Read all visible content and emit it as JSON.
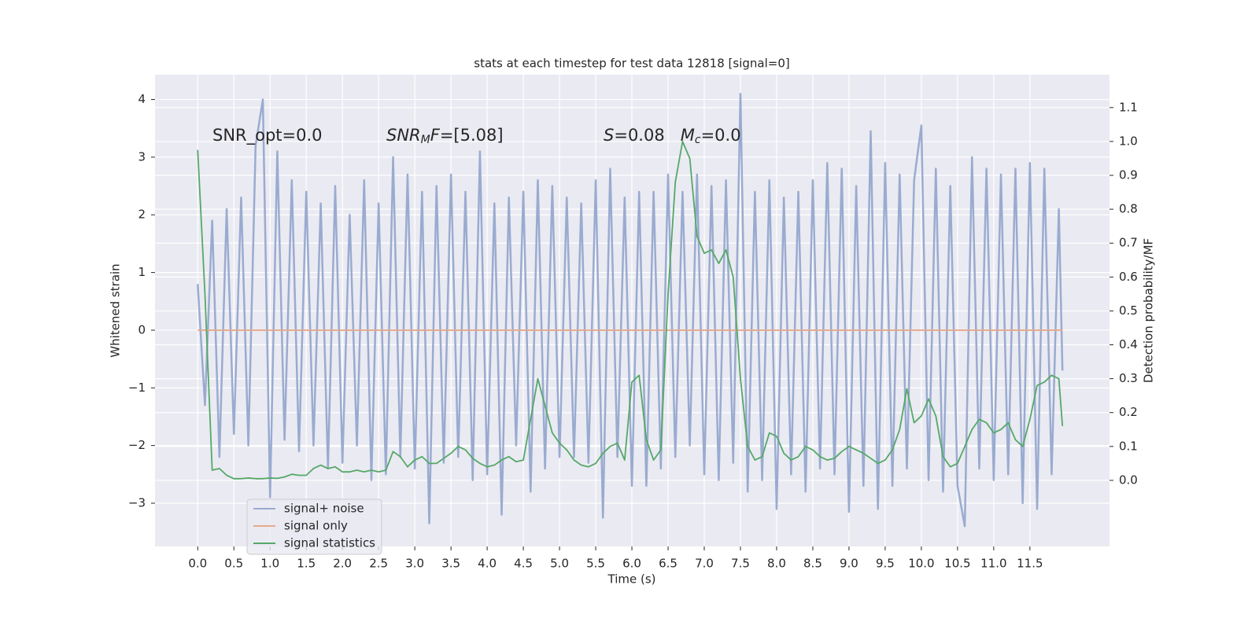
{
  "chart_data": {
    "type": "line",
    "title": "stats at each timestep for test data 12818 [signal=0]",
    "x_label": "Time (s)",
    "y_label": "Whitened strain",
    "y2_label": "Detection probability/MF",
    "annotations": [
      [
        {
          "text": "SNR_opt=0.0",
          "style": "normal"
        }
      ],
      [
        {
          "text": "SNR",
          "style": "italic"
        },
        {
          "text": "M",
          "style": "sub"
        },
        {
          "text": "F",
          "style": "italic"
        },
        {
          "text": "=[5.08]",
          "style": "normal"
        }
      ],
      [
        {
          "text": "S",
          "style": "italic"
        },
        {
          "text": "=0.08   ",
          "style": "normal"
        },
        {
          "text": "M",
          "style": "italic"
        },
        {
          "text": "c",
          "style": "sub"
        },
        {
          "text": "=0.0",
          "style": "normal"
        }
      ]
    ],
    "x": [
      0,
      0.1,
      0.2,
      0.3,
      0.4,
      0.5,
      0.6,
      0.7,
      0.8,
      0.9,
      1.0,
      1.1,
      1.2,
      1.3,
      1.4,
      1.5,
      1.6,
      1.7,
      1.8,
      1.9,
      2.0,
      2.1,
      2.2,
      2.3,
      2.4,
      2.5,
      2.6,
      2.7,
      2.8,
      2.9,
      3.0,
      3.1,
      3.2,
      3.3,
      3.4,
      3.5,
      3.6,
      3.7,
      3.8,
      3.9,
      4.0,
      4.1,
      4.2,
      4.3,
      4.4,
      4.5,
      4.6,
      4.7,
      4.8,
      4.9,
      5.0,
      5.1,
      5.2,
      5.3,
      5.4,
      5.5,
      5.6,
      5.7,
      5.8,
      5.9,
      6.0,
      6.1,
      6.2,
      6.3,
      6.4,
      6.5,
      6.6,
      6.7,
      6.8,
      6.9,
      7.0,
      7.1,
      7.2,
      7.3,
      7.4,
      7.5,
      7.6,
      7.7,
      7.8,
      7.9,
      8.0,
      8.1,
      8.2,
      8.3,
      8.4,
      8.5,
      8.6,
      8.7,
      8.8,
      8.9,
      9.0,
      9.1,
      9.2,
      9.3,
      9.4,
      9.5,
      9.6,
      9.7,
      9.8,
      9.9,
      10.0,
      10.1,
      10.2,
      10.3,
      10.4,
      10.5,
      10.6,
      10.7,
      10.8,
      10.9,
      11.0,
      11.1,
      11.2,
      11.3,
      11.4,
      11.5,
      11.6,
      11.7,
      11.8,
      11.9,
      11.95
    ],
    "series": [
      {
        "name": "signal+ noise",
        "color": "#9aabd0",
        "axis": "y",
        "values": [
          0.8,
          -1.3,
          1.9,
          -2.2,
          2.1,
          -1.8,
          2.3,
          -2.0,
          3.2,
          4.0,
          -2.9,
          3.1,
          -1.9,
          2.6,
          -2.1,
          2.4,
          -2.0,
          2.2,
          -2.4,
          2.5,
          -2.3,
          2.0,
          -2.0,
          2.6,
          -2.6,
          2.2,
          -2.5,
          3.0,
          -2.2,
          2.7,
          -2.4,
          2.4,
          -3.35,
          2.5,
          -2.3,
          2.7,
          -2.2,
          2.4,
          -2.6,
          3.1,
          -2.5,
          2.2,
          -3.2,
          2.3,
          -2.0,
          2.4,
          -2.8,
          2.6,
          -2.4,
          2.5,
          -2.2,
          2.3,
          -2.2,
          2.2,
          -2.3,
          2.6,
          -3.25,
          2.8,
          -2.2,
          2.3,
          -2.7,
          2.4,
          -2.7,
          2.4,
          -2.4,
          2.7,
          -2.2,
          2.4,
          -2.0,
          2.7,
          -2.5,
          2.5,
          -2.6,
          2.6,
          -2.3,
          4.1,
          -2.8,
          2.4,
          -2.6,
          2.6,
          -3.1,
          2.3,
          -2.5,
          2.4,
          -2.8,
          2.6,
          -2.4,
          2.9,
          -2.5,
          2.8,
          -3.15,
          2.5,
          -2.7,
          3.45,
          -3.1,
          2.9,
          -2.7,
          2.7,
          -2.4,
          2.6,
          3.55,
          -2.6,
          2.8,
          -2.8,
          2.5,
          -2.7,
          -3.4,
          3.0,
          -2.4,
          2.8,
          -2.6,
          2.7,
          -2.5,
          2.8,
          -3.0,
          2.9,
          -3.1,
          2.8,
          -2.5,
          2.1,
          -0.7
        ]
      },
      {
        "name": "signal only",
        "color": "#e6a98c",
        "axis": "y",
        "values": [
          0,
          0,
          0,
          0,
          0,
          0,
          0,
          0,
          0,
          0,
          0,
          0,
          0,
          0,
          0,
          0,
          0,
          0,
          0,
          0,
          0,
          0,
          0,
          0,
          0,
          0,
          0,
          0,
          0,
          0,
          0,
          0,
          0,
          0,
          0,
          0,
          0,
          0,
          0,
          0,
          0,
          0,
          0,
          0,
          0,
          0,
          0,
          0,
          0,
          0,
          0,
          0,
          0,
          0,
          0,
          0,
          0,
          0,
          0,
          0,
          0,
          0,
          0,
          0,
          0,
          0,
          0,
          0,
          0,
          0,
          0,
          0,
          0,
          0,
          0,
          0,
          0,
          0,
          0,
          0,
          0,
          0,
          0,
          0,
          0,
          0,
          0,
          0,
          0,
          0,
          0,
          0,
          0,
          0,
          0,
          0,
          0,
          0,
          0,
          0,
          0,
          0,
          0,
          0,
          0,
          0,
          0,
          0,
          0,
          0,
          0,
          0,
          0,
          0,
          0,
          0,
          0,
          0,
          0,
          0,
          0
        ]
      },
      {
        "name": "signal statistics",
        "color": "#55a868",
        "axis": "y2",
        "values": [
          0.975,
          0.55,
          0.03,
          0.035,
          0.015,
          0.005,
          0.005,
          0.007,
          0.005,
          0.005,
          0.007,
          0.006,
          0.01,
          0.018,
          0.015,
          0.015,
          0.035,
          0.045,
          0.035,
          0.04,
          0.025,
          0.025,
          0.03,
          0.025,
          0.03,
          0.025,
          0.03,
          0.085,
          0.07,
          0.04,
          0.06,
          0.07,
          0.05,
          0.05,
          0.065,
          0.08,
          0.1,
          0.09,
          0.065,
          0.05,
          0.04,
          0.045,
          0.06,
          0.07,
          0.055,
          0.06,
          0.18,
          0.3,
          0.22,
          0.14,
          0.11,
          0.09,
          0.06,
          0.045,
          0.04,
          0.05,
          0.08,
          0.1,
          0.11,
          0.06,
          0.29,
          0.31,
          0.12,
          0.06,
          0.09,
          0.55,
          0.88,
          1.0,
          0.95,
          0.72,
          0.67,
          0.68,
          0.64,
          0.68,
          0.6,
          0.3,
          0.1,
          0.06,
          0.07,
          0.14,
          0.13,
          0.08,
          0.06,
          0.07,
          0.1,
          0.09,
          0.07,
          0.06,
          0.065,
          0.085,
          0.1,
          0.09,
          0.08,
          0.065,
          0.05,
          0.06,
          0.09,
          0.15,
          0.27,
          0.17,
          0.19,
          0.24,
          0.19,
          0.07,
          0.04,
          0.05,
          0.1,
          0.15,
          0.18,
          0.17,
          0.14,
          0.15,
          0.17,
          0.12,
          0.1,
          0.18,
          0.28,
          0.29,
          0.31,
          0.3,
          0.16
        ]
      }
    ],
    "xlim": [
      -0.59,
      12.6
    ],
    "xticks": [
      {
        "value": 0,
        "label": "0.0"
      },
      0.5,
      {
        "value": 1,
        "label": "1.0"
      },
      1.5,
      {
        "value": 2,
        "label": "2.0"
      },
      2.5,
      {
        "value": 3,
        "label": "3.0"
      },
      3.5,
      {
        "value": 4,
        "label": "4.0"
      },
      4.5,
      {
        "value": 5,
        "label": "5.0"
      },
      5.5,
      {
        "value": 6,
        "label": "6.0"
      },
      6.5,
      {
        "value": 7,
        "label": "7.0"
      },
      7.5,
      {
        "value": 8,
        "label": "8.0"
      },
      8.5,
      {
        "value": 9,
        "label": "9.0"
      },
      9.5,
      {
        "value": 10,
        "label": "10.0"
      },
      10.5,
      {
        "value": 11,
        "label": "11.0"
      },
      11.5
    ],
    "ylim": [
      -3.75,
      4.43
    ],
    "yticks": [
      {
        "value": -3,
        "label": "−3"
      },
      {
        "value": -2,
        "label": "−2"
      },
      {
        "value": -1,
        "label": "−1"
      },
      0,
      1,
      2,
      3,
      4
    ],
    "y2lim": [
      -0.195,
      1.197
    ],
    "y2ticks": [
      {
        "value": 0,
        "label": "0.0"
      },
      0.1,
      0.2,
      0.3,
      0.4,
      0.5,
      0.6,
      0.7,
      0.8,
      0.9,
      {
        "value": 1,
        "label": "1.0"
      },
      1.1
    ],
    "grid": true,
    "legend": "lower left"
  }
}
